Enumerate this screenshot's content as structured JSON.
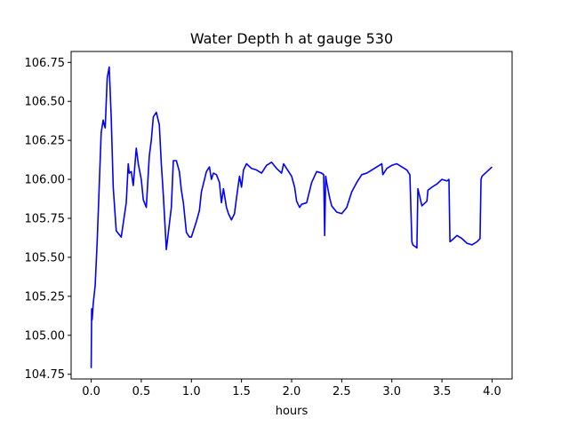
{
  "chart_data": {
    "type": "line",
    "title": "Water Depth h at gauge 530",
    "xlabel": "hours",
    "ylabel": "",
    "xlim": [
      -0.2,
      4.2
    ],
    "ylim": [
      104.72,
      106.82
    ],
    "xticks": [
      0.0,
      0.5,
      1.0,
      1.5,
      2.0,
      2.5,
      3.0,
      3.5,
      4.0
    ],
    "xtick_labels": [
      "0.0",
      "0.5",
      "1.0",
      "1.5",
      "2.0",
      "2.5",
      "3.0",
      "3.5",
      "4.0"
    ],
    "yticks": [
      104.75,
      105.0,
      105.25,
      105.5,
      105.75,
      106.0,
      106.25,
      106.5,
      106.75
    ],
    "ytick_labels": [
      "104.75",
      "105.00",
      "105.25",
      "105.50",
      "105.75",
      "106.00",
      "106.25",
      "106.50",
      "106.75"
    ],
    "grid": false,
    "line_color": "#0000ff",
    "series": [
      {
        "x": [
          0.0,
          0.005,
          0.01,
          0.02,
          0.04,
          0.06,
          0.08,
          0.1,
          0.12,
          0.13,
          0.14,
          0.16,
          0.18,
          0.2,
          0.22,
          0.25,
          0.3,
          0.35,
          0.37,
          0.38,
          0.4,
          0.42,
          0.45,
          0.47,
          0.5,
          0.52,
          0.55,
          0.58,
          0.6,
          0.62,
          0.65,
          0.68,
          0.7,
          0.72,
          0.75,
          0.8,
          0.82,
          0.85,
          0.88,
          0.9,
          0.92,
          0.95,
          0.98,
          1.0,
          1.02,
          1.05,
          1.08,
          1.1,
          1.15,
          1.18,
          1.2,
          1.22,
          1.25,
          1.28,
          1.3,
          1.32,
          1.35,
          1.37,
          1.4,
          1.43,
          1.45,
          1.48,
          1.5,
          1.52,
          1.55,
          1.6,
          1.65,
          1.7,
          1.72,
          1.75,
          1.8,
          1.85,
          1.9,
          1.92,
          1.95,
          2.0,
          2.03,
          2.05,
          2.08,
          2.1,
          2.15,
          2.2,
          2.25,
          2.3,
          2.32,
          2.33,
          2.34,
          2.35,
          2.38,
          2.4,
          2.45,
          2.5,
          2.55,
          2.6,
          2.65,
          2.7,
          2.75,
          2.8,
          2.85,
          2.9,
          2.91,
          2.95,
          3.0,
          3.05,
          3.1,
          3.15,
          3.18,
          3.2,
          3.21,
          3.25,
          3.26,
          3.3,
          3.35,
          3.36,
          3.4,
          3.45,
          3.5,
          3.55,
          3.57,
          3.58,
          3.6,
          3.65,
          3.7,
          3.75,
          3.8,
          3.85,
          3.88,
          3.89,
          3.9,
          3.95,
          4.0
        ],
        "y": [
          104.79,
          105.17,
          105.1,
          105.2,
          105.32,
          105.6,
          105.95,
          106.3,
          106.38,
          106.35,
          106.33,
          106.65,
          106.72,
          106.4,
          105.95,
          105.67,
          105.63,
          105.85,
          106.1,
          106.04,
          106.05,
          105.96,
          106.2,
          106.1,
          106.0,
          105.87,
          105.82,
          106.15,
          106.25,
          106.4,
          106.43,
          106.35,
          106.1,
          105.9,
          105.55,
          105.82,
          106.12,
          106.12,
          106.05,
          105.93,
          105.85,
          105.66,
          105.63,
          105.63,
          105.67,
          105.73,
          105.8,
          105.92,
          106.05,
          106.08,
          106.0,
          106.04,
          106.03,
          105.98,
          105.85,
          105.94,
          105.82,
          105.78,
          105.74,
          105.78,
          105.88,
          106.02,
          105.95,
          106.06,
          106.1,
          106.07,
          106.06,
          106.04,
          106.06,
          106.09,
          106.11,
          106.07,
          106.04,
          106.1,
          106.07,
          106.02,
          105.95,
          105.86,
          105.82,
          105.84,
          105.85,
          105.98,
          106.05,
          106.04,
          106.03,
          105.64,
          106.02,
          105.98,
          105.88,
          105.83,
          105.79,
          105.78,
          105.82,
          105.92,
          105.98,
          106.03,
          106.04,
          106.06,
          106.08,
          106.1,
          106.03,
          106.07,
          106.09,
          106.1,
          106.08,
          106.06,
          106.03,
          105.6,
          105.58,
          105.56,
          105.94,
          105.83,
          105.86,
          105.93,
          105.95,
          105.97,
          106.0,
          105.99,
          106.0,
          105.6,
          105.61,
          105.64,
          105.62,
          105.59,
          105.58,
          105.6,
          105.62,
          106.0,
          106.02,
          106.05,
          106.08
        ]
      }
    ]
  }
}
